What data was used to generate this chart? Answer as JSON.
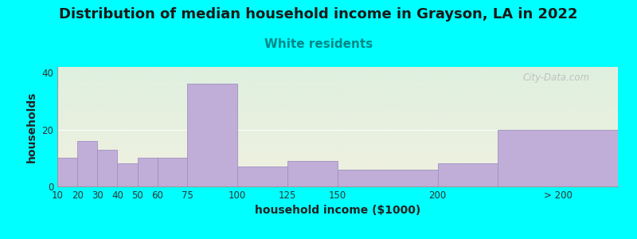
{
  "title": "Distribution of median household income in Grayson, LA in 2022",
  "subtitle": "White residents",
  "xlabel": "household income ($1000)",
  "ylabel": "households",
  "background_color": "#00FFFF",
  "plot_bg_top": "#dff0df",
  "plot_bg_bottom": "#f0f0e0",
  "bar_color": "#c0aed8",
  "bar_edge_color": "#a090c0",
  "bin_edges": [
    10,
    20,
    30,
    40,
    50,
    60,
    75,
    100,
    125,
    150,
    200,
    230,
    290
  ],
  "values": [
    10,
    16,
    13,
    8,
    10,
    10,
    36,
    7,
    9,
    6,
    8,
    20
  ],
  "tick_positions": [
    10,
    20,
    30,
    40,
    50,
    60,
    75,
    100,
    125,
    150,
    200,
    260
  ],
  "tick_labels": [
    "10",
    "20",
    "30",
    "40",
    "50",
    "60",
    "75",
    "100",
    "125",
    "150",
    "200",
    "> 200"
  ],
  "xlim": [
    10,
    290
  ],
  "ylim": [
    0,
    42
  ],
  "yticks": [
    0,
    20,
    40
  ],
  "title_fontsize": 13,
  "subtitle_fontsize": 11,
  "subtitle_color": "#008888",
  "axis_label_fontsize": 10,
  "tick_fontsize": 8.5,
  "watermark_text": "City-Data.com",
  "watermark_color": "#b8b8b8"
}
